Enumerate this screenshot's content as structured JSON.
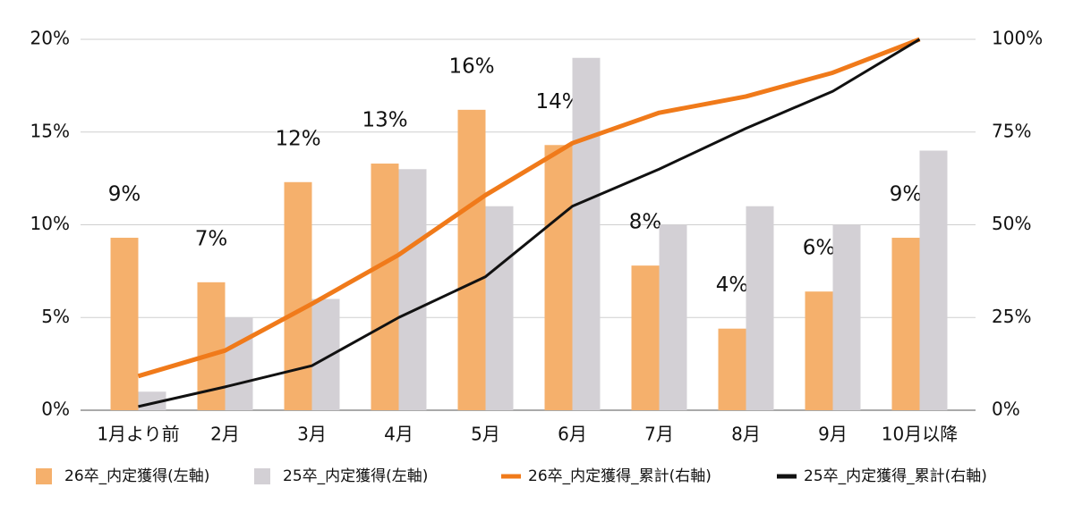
{
  "chart_data": {
    "type": "bar",
    "categories": [
      "1月より前",
      "2月",
      "3月",
      "4月",
      "5月",
      "6月",
      "7月",
      "8月",
      "9月",
      "10月以降"
    ],
    "series": [
      {
        "name": "26卒_内定獲得(左軸)",
        "type": "bar",
        "color": "#f5b06c",
        "values": [
          9.3,
          6.9,
          12.3,
          13.3,
          16.2,
          14.3,
          7.8,
          4.4,
          6.4,
          9.3
        ],
        "value_labels": [
          "9%",
          "7%",
          "12%",
          "13%",
          "16%",
          "14%",
          "8%",
          "4%",
          "6%",
          "9%"
        ]
      },
      {
        "name": "25卒_内定獲得(左軸)",
        "type": "bar",
        "color": "#d3d0d5",
        "values": [
          1,
          5,
          6,
          13,
          11,
          19,
          10,
          11,
          10,
          14
        ]
      },
      {
        "name": "26卒_内定獲得_累計(右軸)",
        "type": "line",
        "axis": "y2",
        "color": "#f07a1a",
        "values": [
          9.2,
          16.1,
          28.7,
          41.9,
          58,
          72,
          80.2,
          84.6,
          91,
          100
        ]
      },
      {
        "name": "25卒_内定獲得_累計(右軸)",
        "type": "line",
        "axis": "y2",
        "color": "#111111",
        "values": [
          1,
          6.3,
          12,
          25,
          36,
          55,
          65,
          76,
          86,
          100
        ]
      }
    ],
    "ylim": [
      0,
      20
    ],
    "yticks": [
      {
        "value": 0,
        "label": "0%"
      },
      {
        "value": 5,
        "label": "5%"
      },
      {
        "value": 10,
        "label": "10%"
      },
      {
        "value": 15,
        "label": "15%"
      },
      {
        "value": 20,
        "label": "20%"
      }
    ],
    "y2lim": [
      0,
      100
    ],
    "y2ticks": [
      {
        "value": 0,
        "label": "0%"
      },
      {
        "value": 25,
        "label": "25%"
      },
      {
        "value": 50,
        "label": "50%"
      },
      {
        "value": 75,
        "label": "75%"
      },
      {
        "value": 100,
        "label": "100%"
      }
    ],
    "grid": true,
    "legend": "bottom"
  }
}
